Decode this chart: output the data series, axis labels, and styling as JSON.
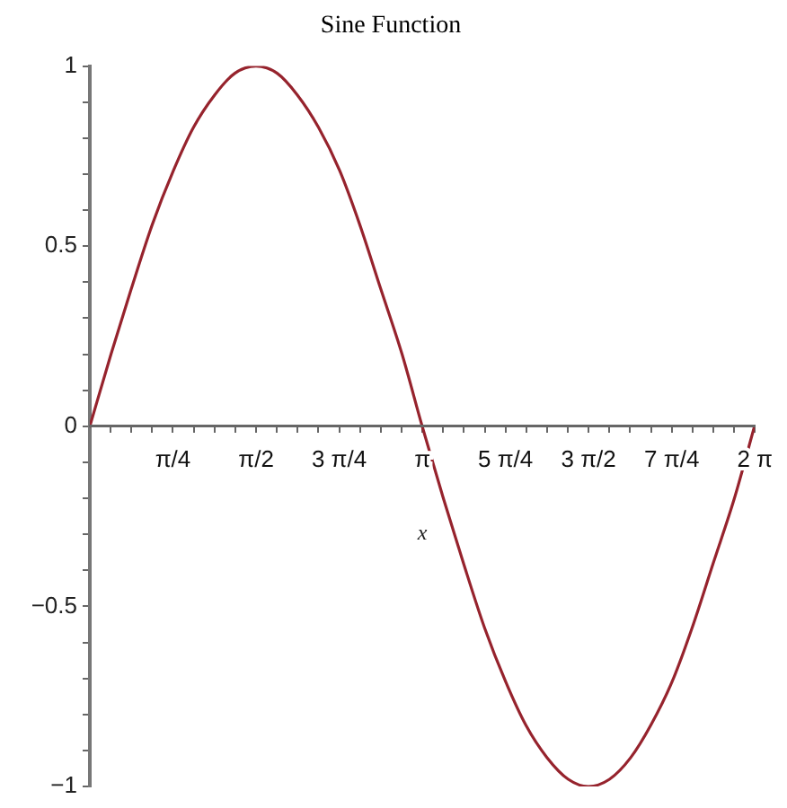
{
  "chart_data": {
    "type": "line",
    "title": "Sine Function",
    "xlabel": "x",
    "x": [
      0,
      0.2,
      0.39,
      0.59,
      0.79,
      0.98,
      1.18,
      1.37,
      1.57,
      1.77,
      1.96,
      2.16,
      2.36,
      2.55,
      2.75,
      2.95,
      3.14,
      3.34,
      3.53,
      3.73,
      3.93,
      4.12,
      4.32,
      4.52,
      4.71,
      4.91,
      5.11,
      5.3,
      5.5,
      5.69,
      5.89,
      6.09,
      6.28
    ],
    "series": [
      {
        "color": "#96232d",
        "values": [
          0,
          0.2,
          0.38,
          0.56,
          0.71,
          0.83,
          0.92,
          0.98,
          1,
          0.98,
          0.92,
          0.83,
          0.71,
          0.56,
          0.38,
          0.2,
          0,
          -0.2,
          -0.38,
          -0.56,
          -0.71,
          -0.83,
          -0.92,
          -0.98,
          -1,
          -0.98,
          -0.92,
          -0.83,
          -0.71,
          -0.56,
          -0.38,
          -0.2,
          0
        ]
      }
    ],
    "xlim": [
      0,
      6.283
    ],
    "xticks": [
      {
        "value": 0.196,
        "label": null
      },
      {
        "value": 0.393,
        "label": null
      },
      {
        "value": 0.589,
        "label": null
      },
      {
        "value": 0.785,
        "label": "π/4"
      },
      {
        "value": 0.982,
        "label": null
      },
      {
        "value": 1.178,
        "label": null
      },
      {
        "value": 1.374,
        "label": null
      },
      {
        "value": 1.571,
        "label": "π/2"
      },
      {
        "value": 1.767,
        "label": null
      },
      {
        "value": 1.963,
        "label": null
      },
      {
        "value": 2.16,
        "label": null
      },
      {
        "value": 2.356,
        "label": "3 π/4"
      },
      {
        "value": 2.553,
        "label": null
      },
      {
        "value": 2.749,
        "label": null
      },
      {
        "value": 2.945,
        "label": null
      },
      {
        "value": 3.142,
        "label": "π"
      },
      {
        "value": 3.338,
        "label": null
      },
      {
        "value": 3.534,
        "label": null
      },
      {
        "value": 3.731,
        "label": null
      },
      {
        "value": 3.927,
        "label": "5 π/4"
      },
      {
        "value": 4.123,
        "label": null
      },
      {
        "value": 4.32,
        "label": null
      },
      {
        "value": 4.516,
        "label": null
      },
      {
        "value": 4.712,
        "label": "3 π/2"
      },
      {
        "value": 4.909,
        "label": null
      },
      {
        "value": 5.105,
        "label": null
      },
      {
        "value": 5.301,
        "label": null
      },
      {
        "value": 5.498,
        "label": "7 π/4"
      },
      {
        "value": 5.694,
        "label": null
      },
      {
        "value": 5.89,
        "label": null
      },
      {
        "value": 6.087,
        "label": null
      },
      {
        "value": 6.283,
        "label": "2 π"
      }
    ],
    "ylim": [
      -1,
      1
    ],
    "yticks": [
      {
        "value": -1,
        "label": "−1"
      },
      {
        "value": -0.9,
        "label": null
      },
      {
        "value": -0.8,
        "label": null
      },
      {
        "value": -0.7,
        "label": null
      },
      {
        "value": -0.6,
        "label": null
      },
      {
        "value": -0.5,
        "label": "−0.5"
      },
      {
        "value": -0.4,
        "label": null
      },
      {
        "value": -0.3,
        "label": null
      },
      {
        "value": -0.2,
        "label": null
      },
      {
        "value": -0.1,
        "label": null
      },
      0,
      {
        "value": 0.1,
        "label": null
      },
      {
        "value": 0.2,
        "label": null
      },
      {
        "value": 0.3,
        "label": null
      },
      {
        "value": 0.4,
        "label": null
      },
      0.5,
      {
        "value": 0.6,
        "label": null
      },
      {
        "value": 0.7,
        "label": null
      },
      {
        "value": 0.8,
        "label": null
      },
      {
        "value": 0.9,
        "label": null
      },
      1
    ],
    "grid": false,
    "legend": false,
    "marker": "none",
    "line_style": "solid"
  }
}
